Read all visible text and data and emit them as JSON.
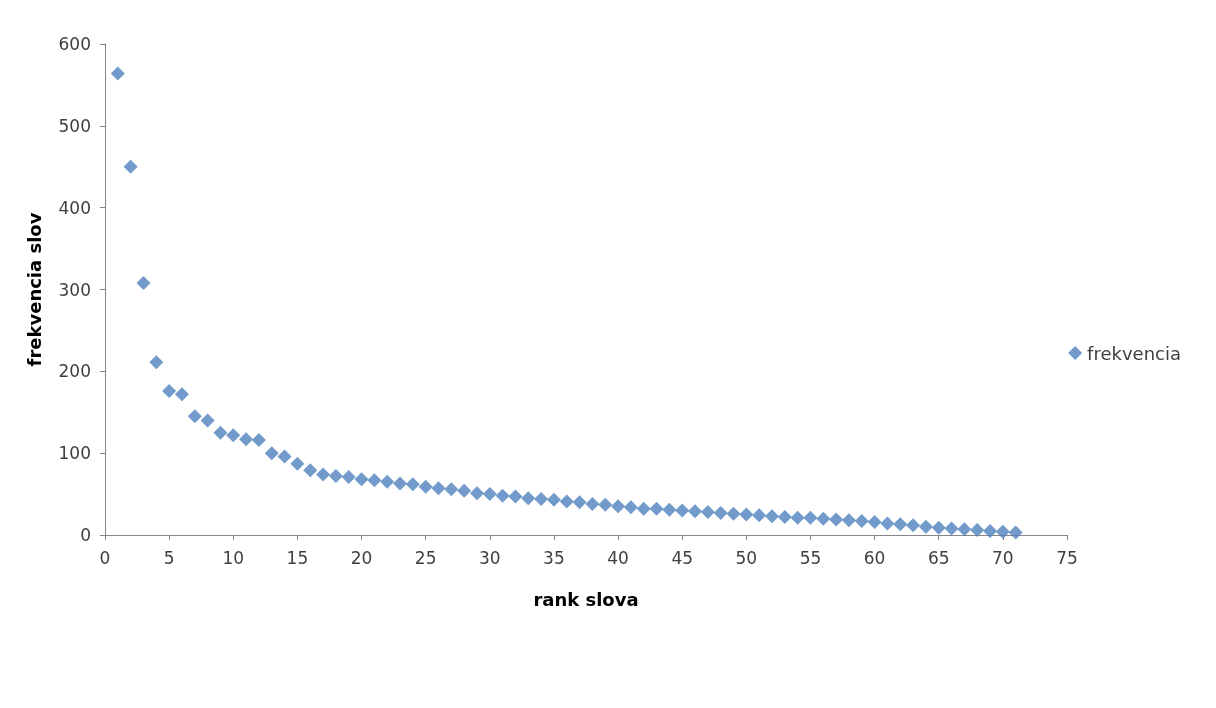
{
  "chart_data": {
    "type": "scatter",
    "xlabel": "rank slova",
    "ylabel": "frekvencia slov",
    "x": [
      1,
      2,
      3,
      4,
      5,
      6,
      7,
      8,
      9,
      10,
      11,
      12,
      13,
      14,
      15,
      16,
      17,
      18,
      19,
      20,
      21,
      22,
      23,
      24,
      25,
      26,
      27,
      28,
      29,
      30,
      31,
      32,
      33,
      34,
      35,
      36,
      37,
      38,
      39,
      40,
      41,
      42,
      43,
      44,
      45,
      46,
      47,
      48,
      49,
      50,
      51,
      52,
      53,
      54,
      55,
      56,
      57,
      58,
      59,
      60,
      61,
      62,
      63,
      64,
      65,
      66,
      67,
      68,
      69,
      70,
      71
    ],
    "series": [
      {
        "name": "frekvencia",
        "color": "#4f81bd",
        "values": [
          564,
          450,
          308,
          211,
          176,
          172,
          145,
          140,
          125,
          122,
          117,
          116,
          100,
          96,
          87,
          79,
          74,
          72,
          71,
          68,
          67,
          65,
          63,
          62,
          59,
          57,
          56,
          54,
          51,
          50,
          48,
          47,
          45,
          44,
          43,
          41,
          40,
          38,
          37,
          35,
          34,
          32,
          32,
          31,
          30,
          29,
          28,
          27,
          26,
          25,
          24,
          23,
          22,
          21,
          21,
          20,
          19,
          18,
          17,
          16,
          14,
          13,
          12,
          10,
          9,
          8,
          7,
          6,
          5,
          4,
          3
        ]
      }
    ],
    "xlim": [
      0,
      75
    ],
    "xticks": [
      0,
      5,
      10,
      15,
      20,
      25,
      30,
      35,
      40,
      45,
      50,
      55,
      60,
      65,
      70,
      75
    ],
    "ylim": [
      0,
      600
    ],
    "yticks": [
      0,
      100,
      200,
      300,
      400,
      500,
      600
    ],
    "grid": false,
    "legend": "right",
    "marker": "diamond"
  }
}
